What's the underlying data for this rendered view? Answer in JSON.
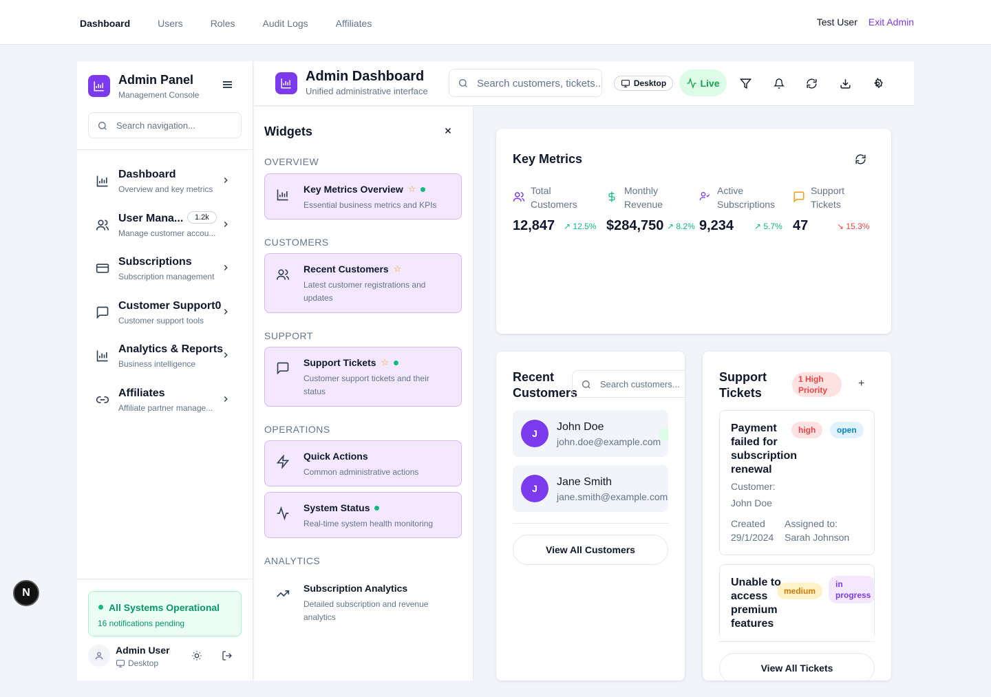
{
  "topnav": {
    "links": [
      "Dashboard",
      "Users",
      "Roles",
      "Audit Logs",
      "Affiliates"
    ],
    "user": "Test User",
    "exit": "Exit Admin"
  },
  "sidebar": {
    "title": "Admin Panel",
    "subtitle": "Management Console",
    "search_placeholder": "Search navigation...",
    "items": [
      {
        "label": "Dashboard",
        "desc": "Overview and key metrics",
        "icon": "bar-chart-icon"
      },
      {
        "label": "User Mana...",
        "desc": "Manage customer accou...",
        "badge": "1.2k",
        "icon": "users-icon"
      },
      {
        "label": "Subscriptions",
        "desc": "Subscription management",
        "icon": "credit-card-icon"
      },
      {
        "label": "Customer Support0",
        "desc": "Customer support tools",
        "icon": "message-square-icon"
      },
      {
        "label": "Analytics & Reports",
        "desc": "Business intelligence",
        "icon": "bar-chart-icon"
      },
      {
        "label": "Affiliates",
        "desc": "Affiliate partner manage...",
        "icon": "link-icon"
      }
    ],
    "status_title": "All Systems Operational",
    "status_sub": "16 notifications pending",
    "user_name": "Admin User",
    "user_device": "Desktop"
  },
  "header": {
    "title": "Admin Dashboard",
    "subtitle": "Unified administrative interface",
    "search_placeholder": "Search customers, tickets...",
    "device": "Desktop",
    "live": "Live"
  },
  "widgets": {
    "title": "Widgets",
    "sections": {
      "overview": "OVERVIEW",
      "customers": "CUSTOMERS",
      "support": "SUPPORT",
      "operations": "OPERATIONS",
      "analytics": "ANALYTICS"
    },
    "cards": [
      {
        "title": "Key Metrics Overview",
        "desc": "Essential business metrics and KPIs"
      },
      {
        "title": "Recent Customers",
        "desc": "Latest customer registrations and updates"
      },
      {
        "title": "Support Tickets",
        "desc": "Customer support tickets and their status"
      },
      {
        "title": "Quick Actions",
        "desc": "Common administrative actions"
      },
      {
        "title": "System Status",
        "desc": "Real-time system health monitoring"
      },
      {
        "title": "Subscription Analytics",
        "desc": "Detailed subscription and revenue analytics"
      }
    ]
  },
  "key_metrics": {
    "title": "Key Metrics",
    "metrics": [
      {
        "label": "Total Customers",
        "value": "12,847",
        "change": "12.5%",
        "dir": "up",
        "color": "#7c3aed"
      },
      {
        "label": "Monthly Revenue",
        "value": "$284,750",
        "change": "8.2%",
        "dir": "up",
        "color": "#10b981"
      },
      {
        "label": "Active Subscriptions",
        "value": "9,234",
        "change": "5.7%",
        "dir": "up",
        "color": "#7c3aed"
      },
      {
        "label": "Support Tickets",
        "value": "47",
        "change": "15.3%",
        "dir": "down",
        "color": "#f59e0b"
      }
    ]
  },
  "recent_customers": {
    "title": "Recent Customers",
    "search_placeholder": "Search customers...",
    "customers": [
      {
        "initial": "J",
        "name": "John Doe",
        "email": "john.doe@example.com"
      },
      {
        "initial": "J",
        "name": "Jane Smith",
        "email": "jane.smith@example.com"
      }
    ],
    "view_all": "View All Customers"
  },
  "support_tickets": {
    "title": "Support Tickets",
    "badge": "1 High Priority",
    "add": "+",
    "tickets": [
      {
        "title": "Payment failed for subscription renewal",
        "priority": "high",
        "status": "open",
        "customer_label": "Customer:",
        "customer": "John Doe",
        "created_label": "Created",
        "created": "29/1/2024",
        "assigned_label": "Assigned to:",
        "assigned": "Sarah Johnson"
      },
      {
        "title": "Unable to access premium features",
        "priority": "medium",
        "status": "in progress"
      }
    ],
    "view_all": "View All Tickets"
  },
  "floating": {
    "label": "N"
  },
  "colors": {
    "accent": "#7c3aed",
    "success": "#10b981",
    "danger": "#ef4444",
    "warning": "#f59e0b"
  }
}
